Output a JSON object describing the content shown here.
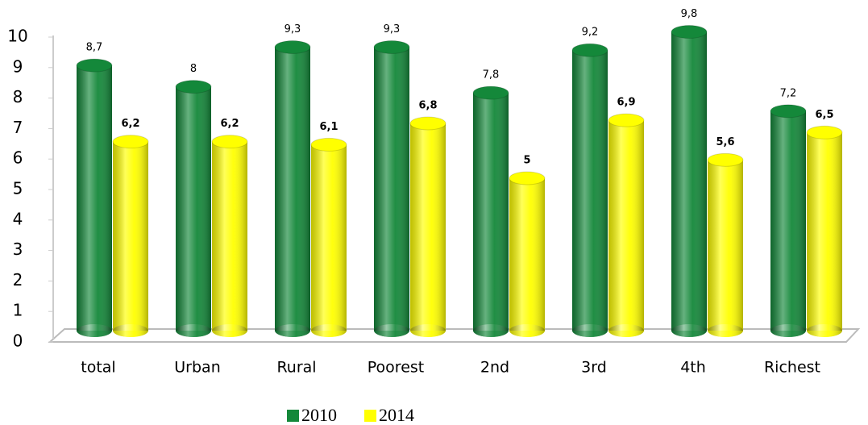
{
  "chart_data": {
    "type": "bar",
    "categories": [
      "total",
      "Urban",
      "Rural",
      "Poorest",
      "2nd",
      "3rd",
      "4th",
      "Richest"
    ],
    "series": [
      {
        "name": "2010",
        "color": "#14883a",
        "values": [
          8.7,
          8,
          9.3,
          9.3,
          7.8,
          9.2,
          9.8,
          7.2
        ],
        "value_labels": [
          "8,7",
          "8",
          "9,3",
          "9,3",
          "7,8",
          "9,2",
          "9,8",
          "7,2"
        ]
      },
      {
        "name": "2014",
        "color": "#ffff00",
        "values": [
          6.2,
          6.2,
          6.1,
          6.8,
          5,
          6.9,
          5.6,
          6.5
        ],
        "value_labels": [
          "6,2",
          "6,2",
          "6,1",
          "6,8",
          "5",
          "6,9",
          "5,6",
          "6,5"
        ]
      }
    ],
    "ylim": [
      0,
      10
    ],
    "yticks": [
      0,
      1,
      2,
      3,
      4,
      5,
      6,
      7,
      8,
      9,
      10
    ],
    "grid": false,
    "legend": "bottom"
  }
}
